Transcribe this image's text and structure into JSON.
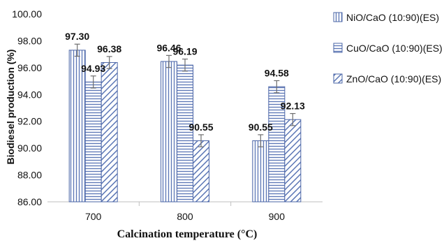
{
  "chart_data": {
    "type": "bar",
    "title": "",
    "xlabel": "Calcination temperature (°C)",
    "ylabel": "Biodiesel production (%)",
    "ylim": [
      86,
      100
    ],
    "yticks": [
      "86.00",
      "88.00",
      "90.00",
      "92.00",
      "94.00",
      "96.00",
      "98.00",
      "100.00"
    ],
    "categories": [
      "700",
      "800",
      "900"
    ],
    "series": [
      {
        "name": "NiO/CaO (10:90)(ES)",
        "values": [
          97.3,
          96.46,
          90.55
        ],
        "labels": [
          "97.30",
          "96.46",
          "90.55"
        ],
        "error": [
          0.45,
          0.45,
          0.45
        ],
        "pattern": "vertical-lines"
      },
      {
        "name": "CuO/CaO (10:90)(ES)",
        "values": [
          94.93,
          96.19,
          94.58
        ],
        "labels": [
          "94.93",
          "96.19",
          "94.58"
        ],
        "error": [
          0.45,
          0.45,
          0.45
        ],
        "pattern": "horizontal-lines"
      },
      {
        "name": "ZnO/CaO (10:90)(ES)",
        "values": [
          96.38,
          90.55,
          92.13
        ],
        "labels": [
          "96.38",
          "90.55",
          "92.13"
        ],
        "error": [
          0.45,
          0.45,
          0.45
        ],
        "pattern": "diagonal-lines"
      }
    ],
    "legend_position": "right",
    "grid": false,
    "error_bars": true
  }
}
